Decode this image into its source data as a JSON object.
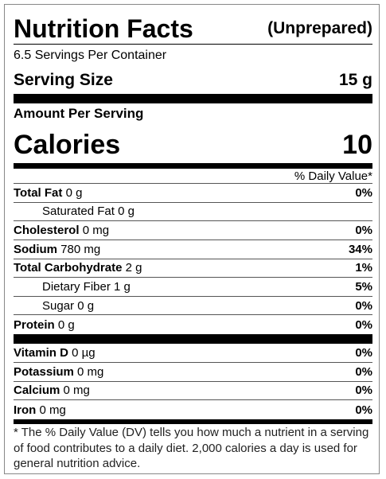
{
  "header": {
    "title": "Nutrition Facts",
    "qualifier": "(Unprepared)"
  },
  "servings_per_container": "6.5 Servings Per Container",
  "serving_size": {
    "label": "Serving Size",
    "value": "15 g"
  },
  "amount_per_serving": "Amount Per Serving",
  "calories": {
    "label": "Calories",
    "value": "10"
  },
  "daily_value_header": "% Daily Value*",
  "nutrients": [
    {
      "name": "Total Fat",
      "amount": "0 g",
      "dv": "0%"
    },
    {
      "name": "Saturated Fat",
      "amount": "0 g",
      "indent": true
    },
    {
      "name": "Cholesterol",
      "amount": "0 mg",
      "dv": "0%"
    },
    {
      "name": "Sodium",
      "amount": "780 mg",
      "dv": "34%"
    },
    {
      "name": "Total Carbohydrate",
      "amount": "2 g",
      "dv": "1%"
    },
    {
      "name": "Dietary Fiber",
      "amount": "1 g",
      "dv": "5%",
      "indent": true
    },
    {
      "name": "Sugar",
      "amount": "0 g",
      "dv": "0%",
      "indent": true
    },
    {
      "name": "Protein",
      "amount": "0 g",
      "dv": "0%"
    }
  ],
  "vitamins": [
    {
      "name": "Vitamin D",
      "amount": "0 µg",
      "dv": "0%"
    },
    {
      "name": "Potassium",
      "amount": "0 mg",
      "dv": "0%"
    },
    {
      "name": "Calcium",
      "amount": "0 mg",
      "dv": "0%"
    },
    {
      "name": "Iron",
      "amount": "0 mg",
      "dv": "0%"
    }
  ],
  "footnote": "* The % Daily Value (DV) tells you how much a nutrient in a serving of food contributes to a daily diet. 2,000 calories a day is used for general nutrition advice."
}
